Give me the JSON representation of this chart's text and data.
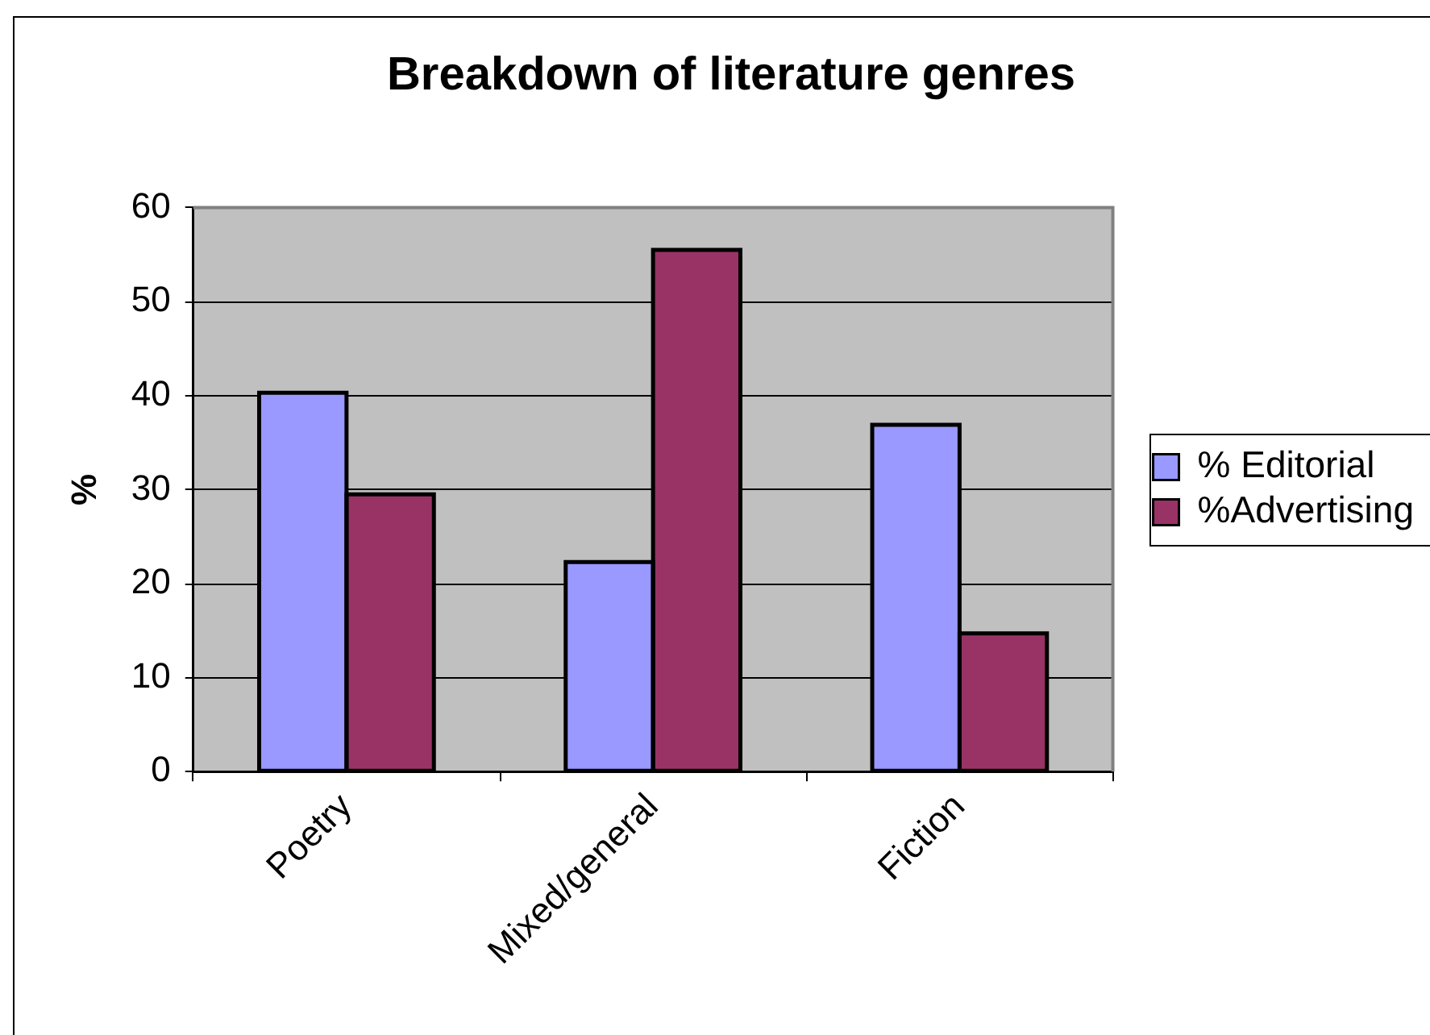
{
  "chart_data": {
    "type": "bar",
    "title": "Breakdown of literature genres",
    "ylabel": "%",
    "categories": [
      "Poetry",
      "Mixed/general",
      "Fiction"
    ],
    "series": [
      {
        "name": "% Editorial",
        "color": "#9999ff",
        "values": [
          40.3,
          22.3,
          36.9
        ]
      },
      {
        "name": "%Advertising",
        "color": "#993366",
        "values": [
          29.5,
          55.5,
          14.7
        ]
      }
    ],
    "ylim": [
      0,
      60
    ],
    "yticks": [
      0,
      10,
      20,
      30,
      40,
      50,
      60
    ],
    "grid": "y",
    "legend": "right"
  }
}
